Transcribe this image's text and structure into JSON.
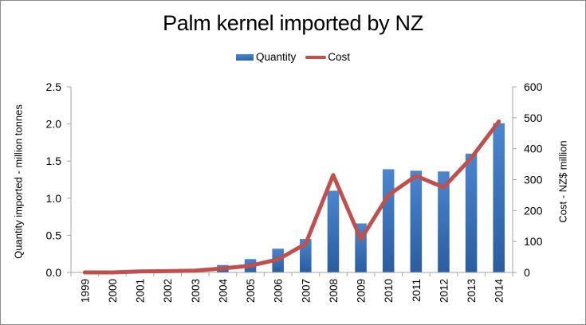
{
  "chart_data": {
    "type": "bar+line",
    "title": "Palm kernel imported by NZ",
    "categories": [
      "1999",
      "2000",
      "2001",
      "2002",
      "2003",
      "2004",
      "2005",
      "2006",
      "2007",
      "2008",
      "2009",
      "2010",
      "2011",
      "2012",
      "2013",
      "2014"
    ],
    "series": [
      {
        "name": "Quantity",
        "type": "bar",
        "axis": "left",
        "color": "#3a73c0",
        "values": [
          0,
          0,
          0,
          0,
          0,
          0.1,
          0.18,
          0.32,
          0.45,
          1.1,
          0.66,
          1.39,
          1.37,
          1.36,
          1.6,
          2.01
        ]
      },
      {
        "name": "Cost",
        "type": "line",
        "axis": "right",
        "color": "#c0504d",
        "values": [
          0,
          0,
          3,
          4,
          6,
          13,
          22,
          42,
          92,
          315,
          107,
          250,
          312,
          275,
          370,
          488
        ]
      }
    ],
    "xlabel": "",
    "ylabel": "Quantity imported - million tonnes",
    "ylabel_right": "Cost - NZ$ million",
    "ylim": [
      0,
      2.5
    ],
    "ylim_right": [
      0,
      600
    ],
    "yticks": [
      "0.0",
      "0.5",
      "1.0",
      "1.5",
      "2.0",
      "2.5"
    ],
    "yticks_right": [
      "0",
      "100",
      "200",
      "300",
      "400",
      "500",
      "600"
    ],
    "legend_position": "top",
    "grid": false
  },
  "legend": {
    "quantity_label": "Quantity",
    "cost_label": "Cost"
  }
}
